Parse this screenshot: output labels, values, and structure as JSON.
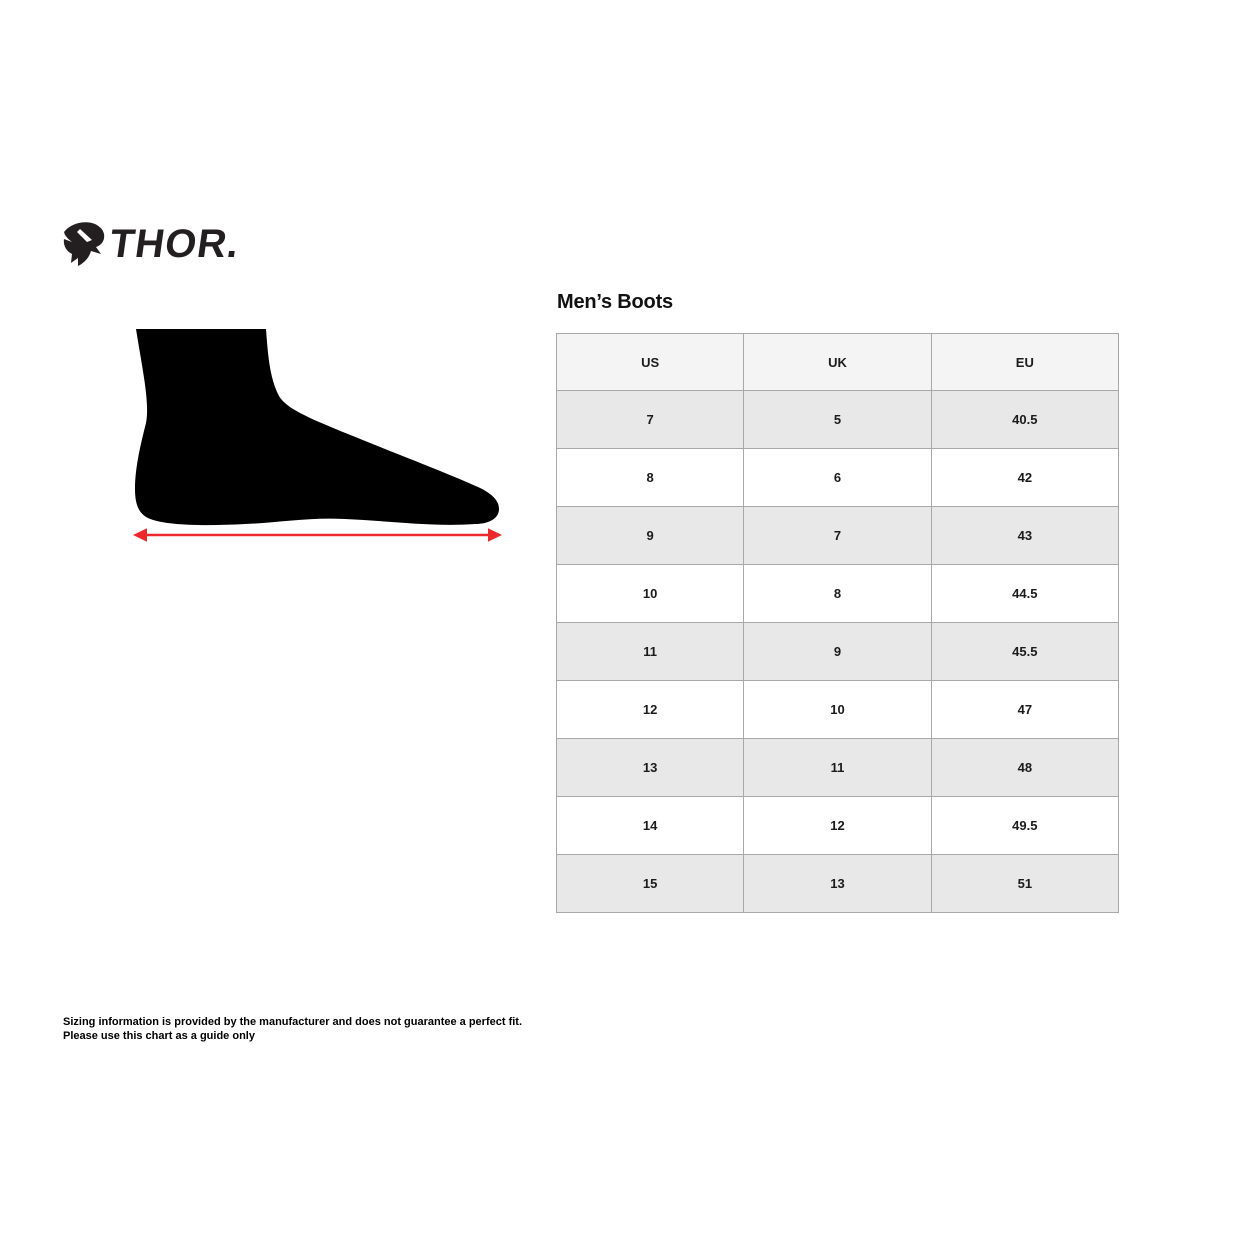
{
  "logo": {
    "wordmark": "THOR",
    "trademark": "."
  },
  "illustration": {
    "name": "foot-side-silhouette",
    "foot_color": "#000000",
    "arrow_color": "#ed282d"
  },
  "size_chart": {
    "title": "Men’s Boots",
    "columns": [
      "US",
      "UK",
      "EU"
    ],
    "rows": [
      [
        "7",
        "5",
        "40.5"
      ],
      [
        "8",
        "6",
        "42"
      ],
      [
        "9",
        "7",
        "43"
      ],
      [
        "10",
        "8",
        "44.5"
      ],
      [
        "11",
        "9",
        "45.5"
      ],
      [
        "12",
        "10",
        "47"
      ],
      [
        "13",
        "11",
        "48"
      ],
      [
        "14",
        "12",
        "49.5"
      ],
      [
        "15",
        "13",
        "51"
      ]
    ]
  },
  "disclaimer": {
    "line1": "Sizing information is provided by the manufacturer and does not guarantee a perfect fit.",
    "line2": "Please use this chart as a guide only"
  },
  "colors": {
    "accent_red": "#ed282d",
    "header_bg": "#f4f4f4",
    "stripe_bg": "#e8e8e8",
    "row_bg": "#ffffff",
    "border": "#a8a8a8",
    "text": "#1b1b1b"
  },
  "chart_data": {
    "type": "table",
    "title": "Men’s Boots",
    "columns": [
      "US",
      "UK",
      "EU"
    ],
    "rows": [
      [
        7,
        5,
        40.5
      ],
      [
        8,
        6,
        42
      ],
      [
        9,
        7,
        43
      ],
      [
        10,
        8,
        44.5
      ],
      [
        11,
        9,
        45.5
      ],
      [
        12,
        10,
        47
      ],
      [
        13,
        11,
        48
      ],
      [
        14,
        12,
        49.5
      ],
      [
        15,
        13,
        51
      ]
    ],
    "notes": "Thor men's boots size conversion chart with foot-length diagram"
  }
}
